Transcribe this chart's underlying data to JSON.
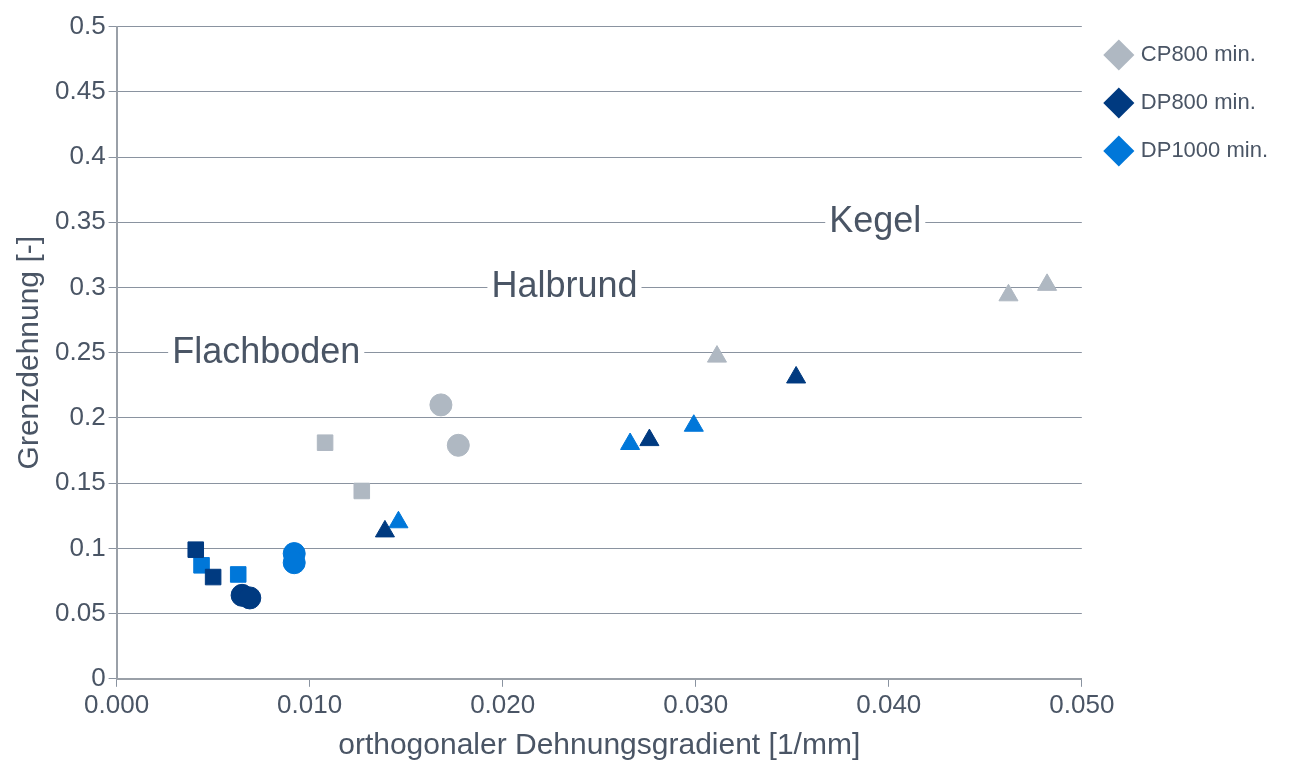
{
  "chart_data": {
    "type": "scatter",
    "xlabel": "orthogonaler Dehnungsgradient [1/mm]",
    "ylabel": "Grenzdehnung [-]",
    "xlim": [
      0,
      0.05
    ],
    "xticks": [
      {
        "value": 0,
        "label": "0.000"
      },
      {
        "value": 0.01,
        "label": "0.010"
      },
      {
        "value": 0.02,
        "label": "0.020"
      },
      {
        "value": 0.03,
        "label": "0.030"
      },
      {
        "value": 0.04,
        "label": "0.040"
      },
      {
        "value": 0.05,
        "label": "0.050"
      }
    ],
    "ylim": [
      0,
      0.5
    ],
    "yticks": [
      0,
      0.05,
      0.1,
      0.15,
      0.2,
      0.25,
      0.3,
      0.35,
      0.4,
      0.45,
      0.5
    ],
    "grid": "y",
    "legend": "right",
    "annotations": [
      "Flachboden",
      "Halbrund",
      "Kegel"
    ],
    "series": [
      {
        "name": "CP800 min.",
        "color": "#afb8c2",
        "marker": "square",
        "x": [
          0.0108,
          0.0127
        ],
        "values": [
          0.181,
          0.144
        ]
      },
      {
        "color": "#afb8c2",
        "marker": "circle",
        "x": [
          0.0168,
          0.0177
        ],
        "values": [
          0.21,
          0.179
        ]
      },
      {
        "color": "#afb8c2",
        "marker": "triangle",
        "x": [
          0.0311,
          0.0462,
          0.0482
        ],
        "values": [
          0.247,
          0.294,
          0.302
        ]
      },
      {
        "name": "DP800 min.",
        "color": "#003a80",
        "marker": "square",
        "x": [
          0.0041,
          0.005
        ],
        "values": [
          0.099,
          0.078
        ]
      },
      {
        "color": "#003a80",
        "marker": "circle",
        "x": [
          0.0065,
          0.0069
        ],
        "values": [
          0.064,
          0.062
        ]
      },
      {
        "color": "#003a80",
        "marker": "triangle",
        "x": [
          0.0139,
          0.0276,
          0.0352
        ],
        "values": [
          0.113,
          0.183,
          0.231
        ]
      },
      {
        "name": "DP1000 min.",
        "color": "#0077d9",
        "marker": "square",
        "x": [
          0.0044,
          0.0063
        ],
        "values": [
          0.087,
          0.08
        ]
      },
      {
        "color": "#0077d9",
        "marker": "circle",
        "x": [
          0.0092,
          0.0092
        ],
        "values": [
          0.096,
          0.089
        ]
      },
      {
        "color": "#0077d9",
        "marker": "triangle",
        "x": [
          0.0146,
          0.0266,
          0.0299
        ],
        "values": [
          0.12,
          0.18,
          0.194
        ]
      }
    ]
  }
}
